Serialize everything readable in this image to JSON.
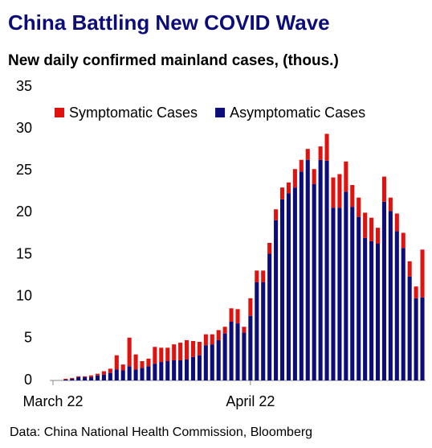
{
  "chart_data": {
    "type": "stacked_bar",
    "title": "China Battling New COVID Wave",
    "subtitle": "New daily confirmed mainland cases, (thous.)",
    "source": "Data: China National Health Commission, Bloomberg",
    "categories": [
      "March 22",
      null,
      null,
      null,
      null,
      null,
      null,
      null,
      null,
      null,
      null,
      null,
      null,
      null,
      null,
      null,
      null,
      null,
      null,
      null,
      null,
      null,
      null,
      null,
      null,
      null,
      null,
      null,
      null,
      null,
      null,
      "April 22",
      null,
      null,
      null,
      null,
      null,
      null,
      null,
      null,
      null,
      null,
      null,
      null,
      null,
      null,
      null,
      null,
      null,
      null,
      null,
      null,
      null,
      null,
      null,
      null,
      null,
      null,
      null
    ],
    "series": [
      {
        "name": "Symptomatic Cases",
        "color": "#e0120f",
        "values": [
          0,
          0,
          0.1,
          0.1,
          0.1,
          0.1,
          0.2,
          0.2,
          0.4,
          0.5,
          1.7,
          0.7,
          3.4,
          1.8,
          0.8,
          0.9,
          2.0,
          1.7,
          1.6,
          1.9,
          2.1,
          2.3,
          1.9,
          1.6,
          1.3,
          1.2,
          1.2,
          0.8,
          1.6,
          1.7,
          0.7,
          2.1,
          1.4,
          1.4,
          1.3,
          1.3,
          1.4,
          1.3,
          2.2,
          1.4,
          1.3,
          1.8,
          1.6,
          3.2,
          3.6,
          4.0,
          3.6,
          2.6,
          2.3,
          3.0,
          2.8,
          1.9,
          3.0,
          1.6,
          2.1,
          1.8,
          1.8,
          1.4,
          5.7
        ]
      },
      {
        "name": "Asymptomatic Cases",
        "color": "#0c0c7a",
        "values": [
          0,
          0,
          0.1,
          0.2,
          0.4,
          0.4,
          0.4,
          0.6,
          0.7,
          0.9,
          1.3,
          1.2,
          1.7,
          1.3,
          1.5,
          1.7,
          2.0,
          2.2,
          2.3,
          2.4,
          2.4,
          2.5,
          2.8,
          3.0,
          4.2,
          4.3,
          4.8,
          5.6,
          7.0,
          6.8,
          5.7,
          7.7,
          11.7,
          11.7,
          15.1,
          19.1,
          21.6,
          22.3,
          23.0,
          24.9,
          26.3,
          23.4,
          26.3,
          26.2,
          20.6,
          20.6,
          22.5,
          20.7,
          19.5,
          17.0,
          16.6,
          16.3,
          21.3,
          20.2,
          17.8,
          15.8,
          12.4,
          9.8,
          9.9
        ]
      }
    ],
    "ylim": [
      0,
      35
    ],
    "yticks": [
      0,
      5,
      10,
      15,
      20,
      25,
      30,
      35
    ]
  }
}
